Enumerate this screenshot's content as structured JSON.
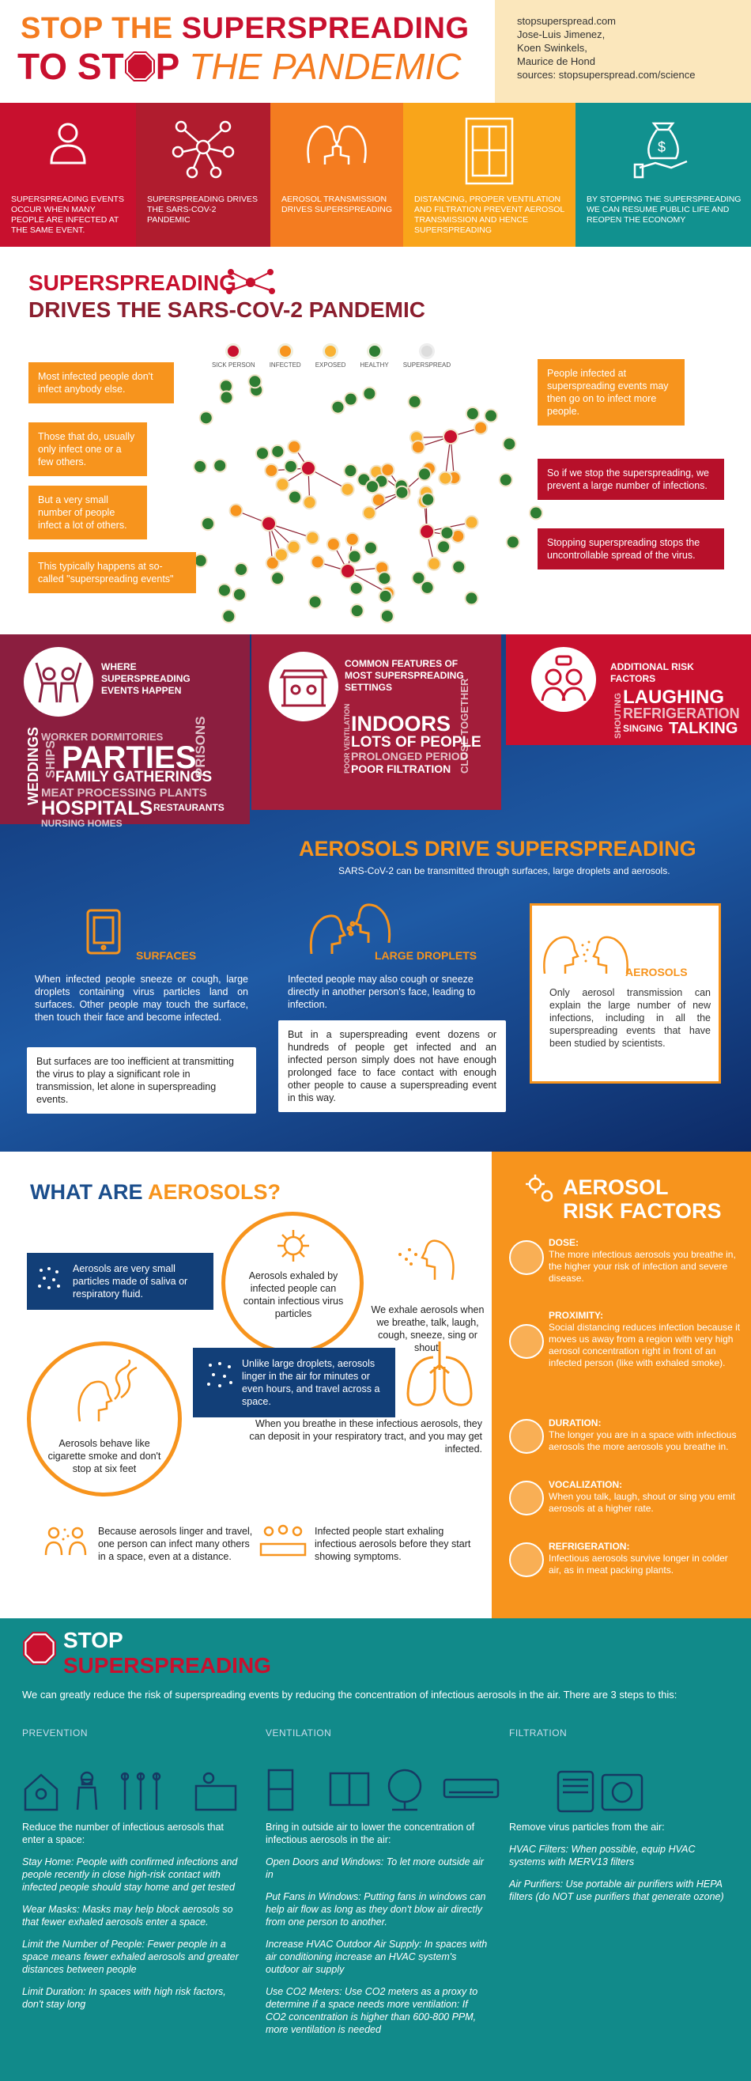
{
  "header": {
    "line1_a": "STOP THE ",
    "line1_b": "SUPERSPREADING",
    "line2_a": "TO ST",
    "line2_b": "P ",
    "line2_c": "THE PANDEMIC",
    "credits": [
      "stopsuperspread.com",
      "Jose-Luis Jimenez,",
      "Koen Swinkels,",
      "Maurice de Hond",
      "sources: stopsuperspread.com/science"
    ]
  },
  "strip": [
    {
      "text": "SUPERSPREADING EVENTS OCCUR WHEN MANY PEOPLE ARE INFECTED AT THE SAME EVENT.",
      "color": "#c8102e",
      "icon": "person-icon"
    },
    {
      "text": "SUPERSPREADING DRIVES THE SARS-COV-2 PANDEMIC",
      "color": "#b01c2e",
      "icon": "network-icon"
    },
    {
      "text": "AEROSOL TRANSMISSION DRIVES SUPERSPREADING",
      "color": "#f47c20",
      "icon": "heads-icon"
    },
    {
      "text": "DISTANCING, PROPER VENTILATION AND FILTRATION PREVENT AEROSOL TRANSMISSION AND HENCE SUPERSPREADING",
      "color": "#f9a51a",
      "icon": "window-icon"
    },
    {
      "text": "BY STOPPING THE SUPERSPREADING WE CAN RESUME PUBLIC LIFE AND REOPEN THE ECONOMY",
      "color": "#11918f",
      "icon": "money-hand-icon"
    }
  ],
  "s2": {
    "title1": "SUPERSPREADING",
    "title2": "DRIVES THE SARS-COV-2 PANDEMIC",
    "legend": [
      "SICK PERSON",
      "INFECTED",
      "EXPOSED",
      "HEALTHY",
      "SUPERSPREAD"
    ],
    "legend_colors": [
      "#c8102e",
      "#f7941d",
      "#f9b233",
      "#2e7d32",
      "#cccccc"
    ],
    "left": [
      "Most infected people don't infect anybody else.",
      "Those that do, usually only infect one or a few others.",
      "But a very small number of people infect a lot of others.",
      "This typically happens at so-called \"superspreading events\""
    ],
    "right": [
      "People infected at superspreading events may then go on to infect more people.",
      "So if we stop the superspreading, we prevent a large number of infections.",
      "Stopping superspreading stops the uncontrollable spread of the virus."
    ]
  },
  "s3": {
    "where_title": "WHERE SUPERSPREADING EVENTS HAPPEN",
    "where_words": [
      "WORKER DORMITORIES",
      "WEDDINGS",
      "SHIPS",
      "PARTIES",
      "PRISONS",
      "FAMILY GATHERINGS",
      "MEAT PROCESSING PLANTS",
      "HOSPITALS",
      "RESTAURANTS",
      "NURSING HOMES"
    ],
    "common_title": "COMMON FEATURES OF MOST SUPERSPREADING SETTINGS",
    "common_words": [
      "POOR VENTILATION",
      "INDOORS",
      "LOTS OF PEOPLE",
      "PROLONGED PERIOD",
      "POOR FILTRATION",
      "CLOSE TOGETHER"
    ],
    "add_title": "ADDITIONAL RISK FACTORS",
    "add_words": [
      "SHOUTING",
      "LAUGHING",
      "REFRIGERATION",
      "SINGING",
      "TALKING"
    ],
    "aero_title": "AEROSOLS DRIVE SUPERSPREADING",
    "aero_sub": "SARS-CoV-2 can be transmitted through surfaces, large droplets and aerosols.",
    "surfaces_title": "SURFACES",
    "surfaces_text": "When infected people sneeze or cough, large droplets containing virus particles land on surfaces. Other people may touch the surface, then touch their face and become infected.",
    "surfaces_box": "But surfaces are too inefficient at transmitting the virus to play a significant role in transmission, let alone in superspreading events.",
    "droplets_title": "LARGE DROPLETS",
    "droplets_text": "Infected people may also cough or sneeze directly in another person's face, leading to infection.",
    "droplets_box": "But in a superspreading event dozens or hundreds of people get infected and an infected person simply does not have enough prolonged face to face contact with enough other people to cause a superspreading event in this way.",
    "aerosols_title": "AEROSOLS",
    "aerosols_text": "Only aerosol transmission can explain the large number of new infections, including in all the superspreading events that have been studied by scientists."
  },
  "s4": {
    "title_a": "WHAT ARE ",
    "title_b": "AEROSOLS?",
    "banner1": "Aerosols are very small particles made of saliva or respiratory fluid.",
    "circle1": "Aerosols exhaled by infected people can contain infectious virus particles",
    "exhale": "We exhale aerosols when we breathe, talk, laugh, cough, sneeze, sing or shout.",
    "circle2": "Aerosols behave like cigarette smoke and don't stop at six feet",
    "banner2": "Unlike large droplets, aerosols linger in the air for minutes or even hours, and travel across a space.",
    "breathe": "When you breathe in these infectious aerosols, they can deposit in your respiratory tract, and you may get infected.",
    "linger": "Because aerosols linger and travel, one person can infect many others in a space, even at a distance.",
    "exhaling": "Infected people start exhaling infectious aerosols before they start showing symptoms.",
    "risk_title1": "AEROSOL",
    "risk_title2": "RISK FACTORS",
    "risks": [
      {
        "h": "DOSE:",
        "t": "The more infectious aerosols you breathe in, the higher your risk of infection and severe disease.",
        "icon": "dose-icon"
      },
      {
        "h": "PROXIMITY:",
        "t": "Social distancing reduces infection because it moves us away from a region with very high aerosol concentration right in front of an infected person (like with exhaled smoke).",
        "icon": "proximity-icon"
      },
      {
        "h": "DURATION:",
        "t": "The longer you are in a space with infectious aerosols the more aerosols you breathe in.",
        "icon": "clock-icon"
      },
      {
        "h": "VOCALIZATION:",
        "t": "When you talk, laugh, shout or sing you emit aerosols at a higher rate.",
        "icon": "vocal-icon"
      },
      {
        "h": "REFRIGERATION:",
        "t": "Infectious aerosols survive longer in colder air, as in meat packing plants.",
        "icon": "thermometer-icon"
      }
    ]
  },
  "s5": {
    "title1": "STOP",
    "title2": "SUPERSPREADING",
    "intro": "We can greatly reduce the risk of superspreading events by reducing the concentration of infectious aerosols in the air. There are 3 steps to this:",
    "prevention_head": "PREVENTION",
    "ventilation_head": "VENTILATION",
    "filtration_head": "FILTRATION",
    "prevention": [
      "Reduce the number of infectious aerosols that enter a space:",
      "Stay Home: People with confirmed infections and people recently in close high-risk contact with infected people should stay home and get tested",
      "Wear Masks: Masks may help block aerosols so that fewer exhaled aerosols enter a space.",
      "Limit the Number of People: Fewer people in a space means fewer exhaled aerosols and greater distances between people",
      "Limit Duration: In spaces with high risk factors, don't stay long"
    ],
    "ventilation": [
      "Bring in outside air to lower the concentration of infectious aerosols in the air:",
      "Open Doors and Windows: To let more outside air in",
      "Put Fans in Windows: Putting fans in windows can help air flow as long as they don't blow air directly from one person to another.",
      "Increase HVAC Outdoor Air Supply: In spaces with air conditioning increase an HVAC system's outdoor air supply",
      "Use CO2 Meters: Use CO2 meters as a proxy to determine if a space needs more ventilation: If CO2 concentration is higher than 600-800 PPM, more ventilation is needed"
    ],
    "filtration": [
      "Remove virus particles from the air:",
      "HVAC Filters: When possible, equip HVAC systems with MERV13 filters",
      "Air Purifiers: Use portable air purifiers with HEPA filters (do NOT use purifiers that generate ozone)"
    ]
  }
}
